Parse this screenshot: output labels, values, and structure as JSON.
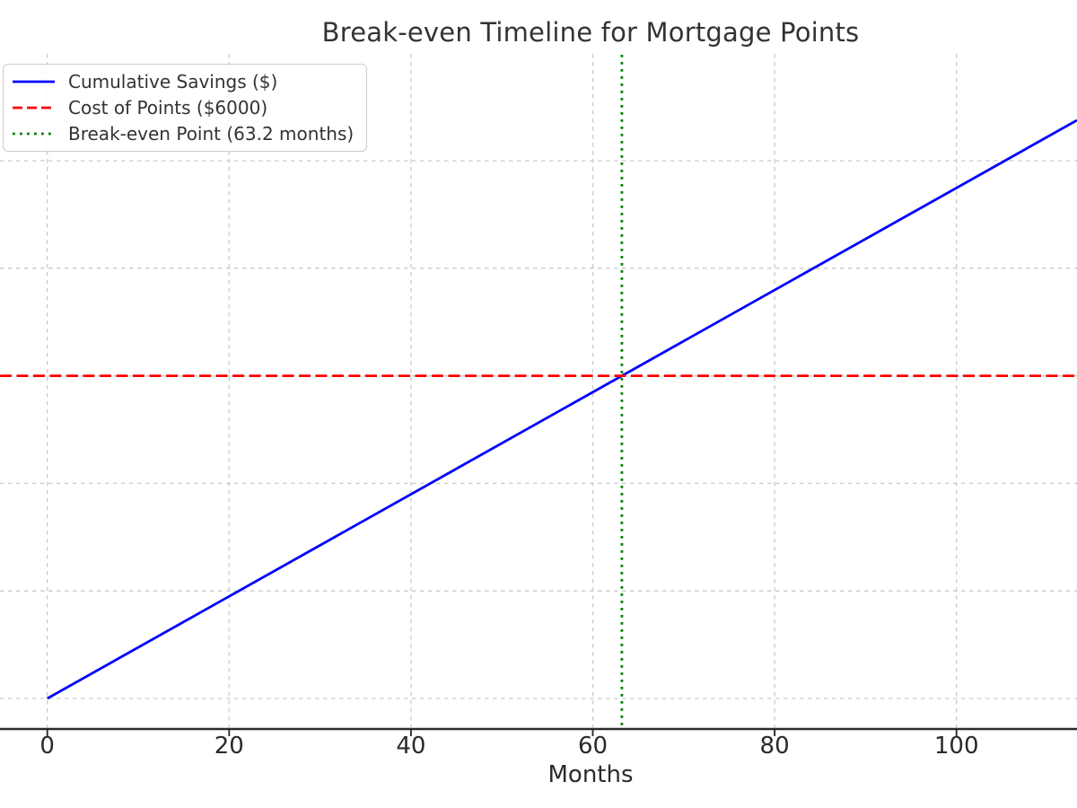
{
  "figure": {
    "title": "Break-even Timeline for Mortgage Points",
    "xlabel": "Months"
  },
  "legend": {
    "position": "upper left",
    "items": [
      {
        "label": "Cumulative Savings ($)",
        "color": "#0000ff",
        "style": "solid",
        "dash": ""
      },
      {
        "label": "Cost of Points ($6000)",
        "color": "#ff0000",
        "style": "dashed",
        "dash": "11 5"
      },
      {
        "label": "Break-even Point (63.2 months)",
        "color": "#008000",
        "style": "dotted",
        "dash": "2.8 5.2"
      }
    ]
  },
  "chart_data": {
    "type": "line",
    "title": "Break-even Timeline for Mortgage Points",
    "xlabel": "Months",
    "ylabel": "",
    "x_ticks": [
      0,
      20,
      40,
      60,
      80,
      100
    ],
    "y_gridline_values": [
      0,
      2000,
      4000,
      6000,
      8000,
      10000
    ],
    "xlim_visible": [
      -5.2,
      113.25
    ],
    "ylim_visible": [
      -570,
      11990
    ],
    "grid": true,
    "grid_style": "dashed",
    "legend_position": "upper left",
    "series": [
      {
        "name": "Cumulative Savings ($)",
        "kind": "line",
        "color": "#0000ff",
        "style": "solid",
        "points_x_months": [
          0,
          63.2,
          113.25
        ],
        "points_y_dollars": [
          0,
          6000,
          10752
        ]
      },
      {
        "name": "Cost of Points ($6000)",
        "kind": "hline",
        "color": "#ff0000",
        "style": "dashed",
        "y_dollars": 6000
      },
      {
        "name": "Break-even Point (63.2 months)",
        "kind": "vline",
        "color": "#008000",
        "style": "dotted",
        "x_months": 63.2
      }
    ]
  },
  "colors": {
    "savings_line": "#0000ff",
    "cost_line": "#ff0000",
    "breakeven_line": "#008000",
    "grid": "#c9c9c9",
    "axis_spine": "#2b2b2b",
    "tick_label": "#2a2a2a",
    "title_text": "#333333"
  }
}
